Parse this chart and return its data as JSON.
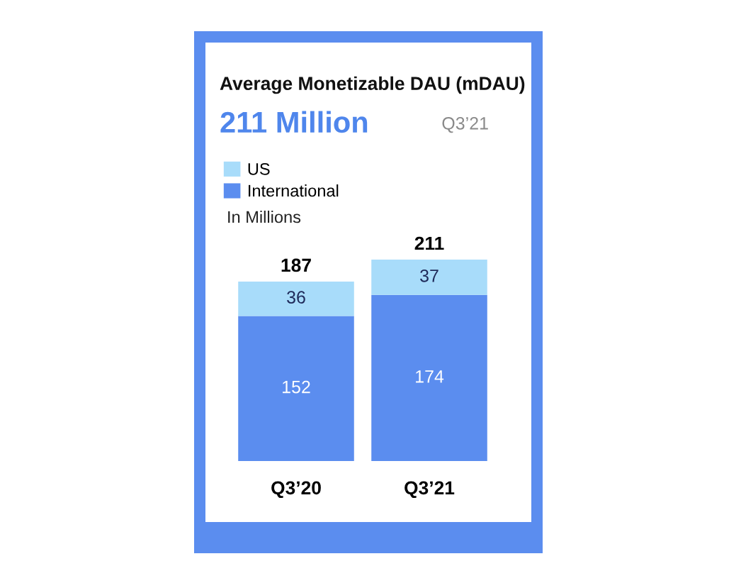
{
  "chart_data": {
    "type": "bar",
    "title": "Average Monetizable DAU (mDAU)",
    "subtitle": "211 Million",
    "annotations": [
      "Q3’21",
      "In Millions"
    ],
    "categories": [
      "Q3’20",
      "Q3’21"
    ],
    "stacked": true,
    "data_labels": true,
    "legend": "top left",
    "series": [
      {
        "name": "International",
        "color": "#5b8def",
        "values": [
          152,
          174
        ]
      },
      {
        "name": "US",
        "color": "#a8dcfa",
        "values": [
          36,
          37
        ]
      }
    ],
    "totals": [
      "187",
      "211"
    ]
  }
}
